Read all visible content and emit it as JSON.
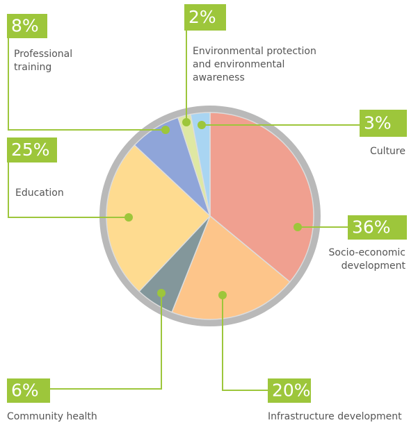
{
  "chart_data": {
    "type": "pie",
    "categories": [
      [
        "Socio-economic",
        "development"
      ],
      [
        "Infrastructure development"
      ],
      [
        "Community health"
      ],
      [
        "Education"
      ],
      [
        "Professional",
        "training"
      ],
      [
        "Environmental protection",
        "and environmental",
        "awareness"
      ],
      [
        "Culture"
      ]
    ],
    "values": [
      36,
      20,
      6,
      25,
      8,
      2,
      3
    ],
    "value_labels": [
      "36%",
      "20%",
      "6%",
      "25%",
      "8%",
      "2%",
      "3%"
    ],
    "colors": [
      "#f0a090",
      "#fdc58a",
      "#83979b",
      "#fedb90",
      "#8fa5d9",
      "#dfe8a3",
      "#a9d5f2"
    ],
    "accent": "#9dc63b",
    "ring": "#b9b9b9"
  }
}
